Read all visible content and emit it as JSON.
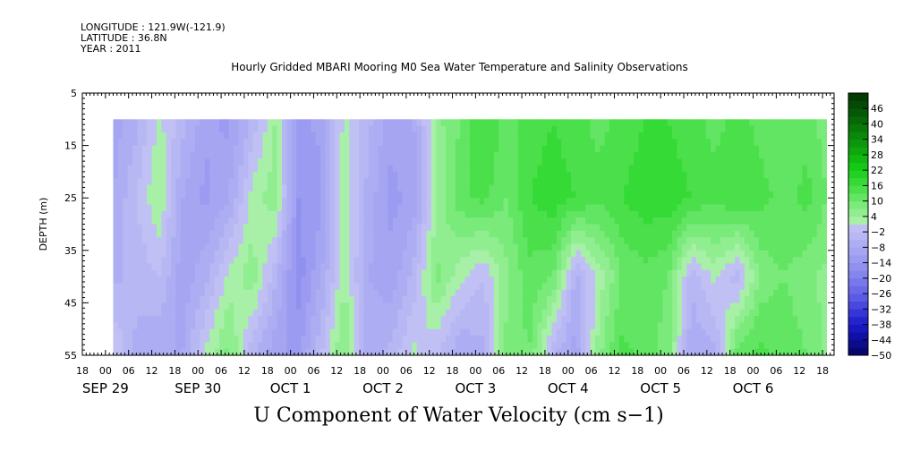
{
  "header": {
    "longitude": "LONGITUDE : 121.9W(-121.9)",
    "latitude": "LATITUDE : 36.8N",
    "year": "YEAR : 2011"
  },
  "chart_data": {
    "type": "heatmap",
    "title": "Hourly Gridded MBARI Mooring M0 Sea Water Temperature and Salinity Observations",
    "bottom_title": "U Component of Water Velocity (cm s−1)",
    "xlabel": "",
    "ylabel": "DEPTH (m)",
    "x_range_hours": [
      -6,
      189
    ],
    "y_range_m": [
      5,
      55
    ],
    "y_inverted": true,
    "data_depth_range_m": [
      10,
      55
    ],
    "data_time_range_hours": [
      2,
      187
    ],
    "y_ticks": [
      "5",
      "15",
      "25",
      "35",
      "45",
      "55"
    ],
    "x_hour_ticks": [
      "18",
      "00",
      "06",
      "12",
      "18",
      "00",
      "06",
      "12",
      "18",
      "00",
      "06",
      "12",
      "18",
      "00",
      "06",
      "12",
      "18",
      "00",
      "06",
      "12",
      "18",
      "00",
      "06",
      "12",
      "18",
      "00",
      "06",
      "12",
      "18",
      "00",
      "06",
      "12",
      "18"
    ],
    "day_labels": [
      "SEP 29",
      "SEP 30",
      "OCT  1",
      "OCT  2",
      "OCT  3",
      "OCT  4",
      "OCT  5",
      "OCT  6"
    ],
    "colorbar": {
      "labels": [
        "46",
        "40",
        "34",
        "28",
        "22",
        "16",
        "10",
        "4",
        "−2",
        "−8",
        "−14",
        "−20",
        "−26",
        "−32",
        "−38",
        "−44",
        "−50"
      ],
      "min": -50,
      "max": 52,
      "step": 3,
      "colors_low_to_high": [
        "#06066e",
        "#0b0b8c",
        "#1010a8",
        "#1818be",
        "#2424cc",
        "#3535d6",
        "#4848de",
        "#5a5ae4",
        "#6a6ae8",
        "#7878ec",
        "#8585ee",
        "#9090f0",
        "#9b9bf1",
        "#a5a5f2",
        "#adadf3",
        "#b7b7f4",
        "#c0c0f4",
        "#a8f0a8",
        "#90ee90",
        "#7aea7a",
        "#62e562",
        "#4be04b",
        "#36da36",
        "#22d222",
        "#14c814",
        "#10b810",
        "#0ea80e",
        "#0c980c",
        "#0a880a",
        "#087808",
        "#066806",
        "#055805",
        "#044a04",
        "#033c03"
      ]
    },
    "u_velocity_cm_s": {
      "times_h": [
        2,
        8,
        14,
        20,
        26,
        32,
        38,
        44,
        50,
        56,
        62,
        68,
        74,
        80,
        86,
        92,
        98,
        104,
        110,
        116,
        122,
        128,
        134,
        140,
        146,
        152,
        158,
        164,
        170,
        176,
        182,
        187
      ],
      "depths_m": [
        10,
        25,
        40,
        55
      ],
      "values": [
        [
          -10,
          -6,
          2,
          -4,
          -10,
          -12,
          -4,
          4,
          -12,
          -10,
          2,
          -4,
          -10,
          -8,
          6,
          10,
          16,
          12,
          14,
          16,
          14,
          12,
          14,
          16,
          16,
          14,
          12,
          14,
          12,
          10,
          12,
          8
        ],
        [
          -8,
          -2,
          4,
          -8,
          -12,
          -8,
          2,
          6,
          -14,
          -12,
          4,
          -6,
          -12,
          -10,
          4,
          12,
          14,
          10,
          16,
          18,
          16,
          14,
          16,
          18,
          18,
          16,
          14,
          16,
          14,
          12,
          14,
          10
        ],
        [
          -6,
          -4,
          -2,
          -10,
          -6,
          2,
          6,
          -4,
          -16,
          -8,
          4,
          -8,
          -10,
          -4,
          8,
          2,
          -2,
          6,
          12,
          10,
          -6,
          2,
          10,
          12,
          10,
          -4,
          2,
          -4,
          8,
          10,
          8,
          6
        ],
        [
          2,
          -6,
          -8,
          -8,
          2,
          8,
          -4,
          -10,
          -12,
          -2,
          8,
          -6,
          -4,
          2,
          -2,
          -8,
          -6,
          8,
          10,
          -4,
          -10,
          6,
          14,
          12,
          8,
          -8,
          -6,
          12,
          14,
          12,
          10,
          6
        ]
      ]
    }
  }
}
